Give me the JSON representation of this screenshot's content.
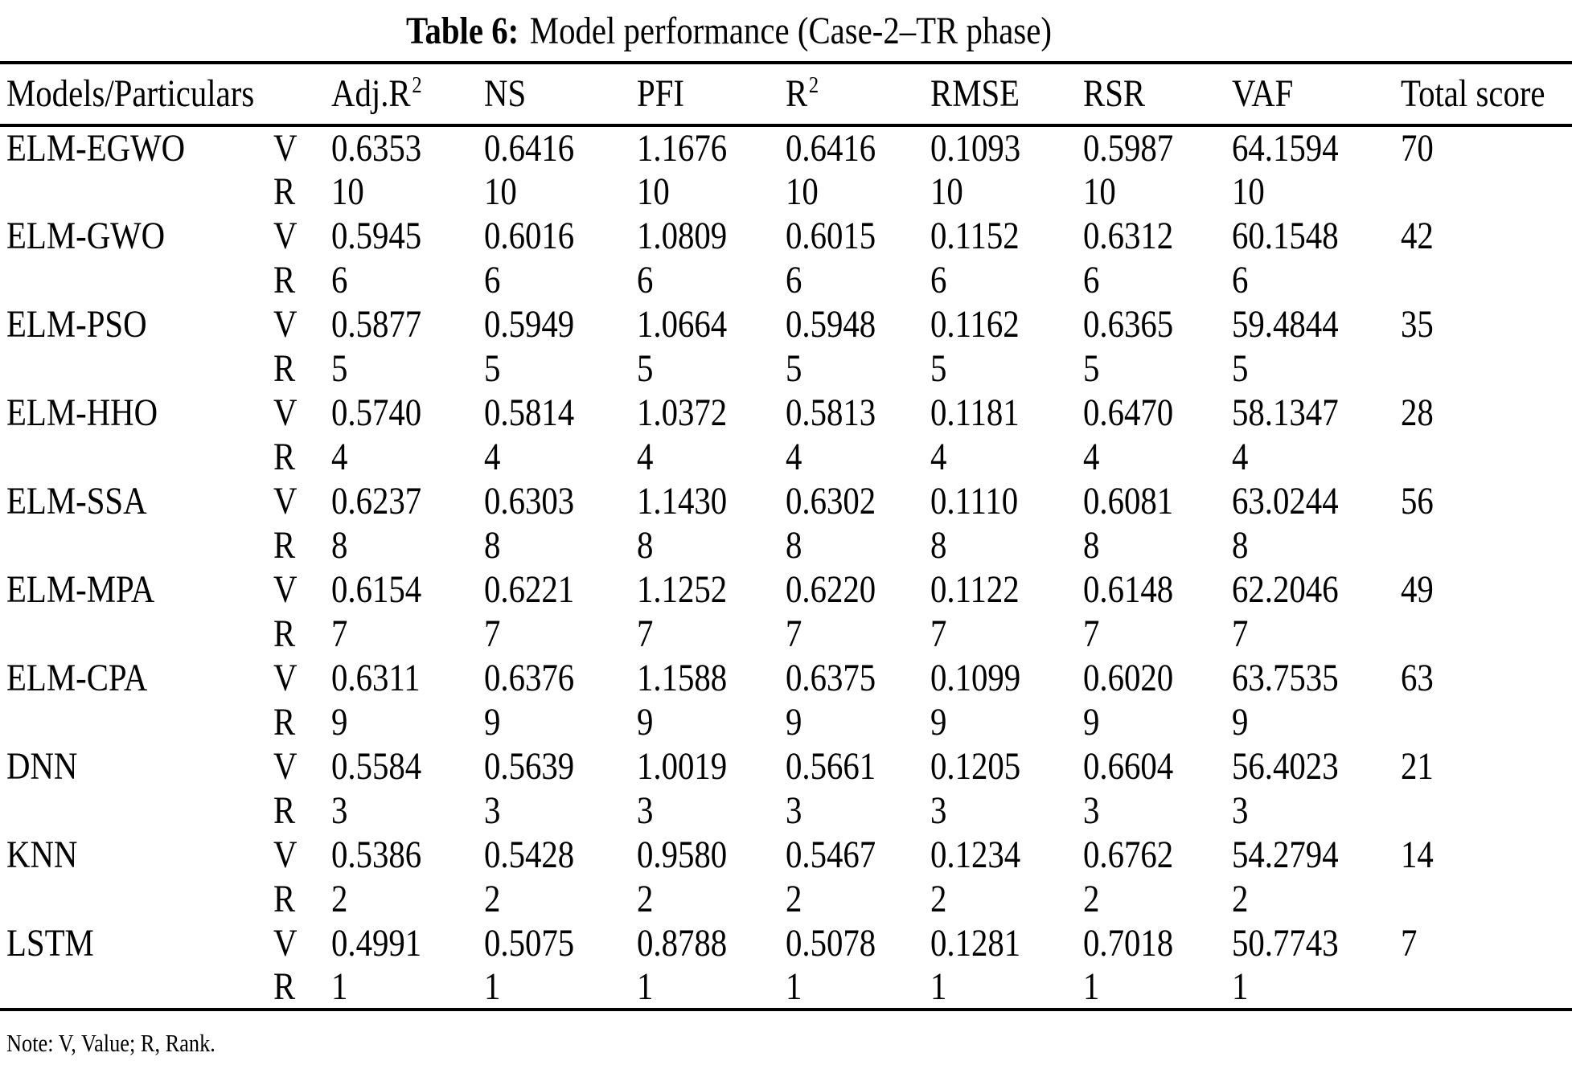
{
  "title": {
    "label": "Table 6:",
    "text": "Model performance (Case-2–TR phase)"
  },
  "table": {
    "col_headers": [
      {
        "label": "Models/Particulars",
        "sup": ""
      },
      {
        "label": "Adj.R",
        "sup": "2"
      },
      {
        "label": "NS",
        "sup": ""
      },
      {
        "label": "PFI",
        "sup": ""
      },
      {
        "label": "R",
        "sup": "2"
      },
      {
        "label": "RMSE",
        "sup": ""
      },
      {
        "label": "RSR",
        "sup": ""
      },
      {
        "label": "VAF",
        "sup": ""
      },
      {
        "label": "Total score",
        "sup": ""
      }
    ],
    "row_type_labels": {
      "value": "V",
      "rank": "R"
    },
    "rows": [
      {
        "model": "ELM-EGWO",
        "values": [
          "0.6353",
          "0.6416",
          "1.1676",
          "0.6416",
          "0.1093",
          "0.5987",
          "64.1594"
        ],
        "ranks": [
          "10",
          "10",
          "10",
          "10",
          "10",
          "10",
          "10"
        ],
        "total_score": "70"
      },
      {
        "model": "ELM-GWO",
        "values": [
          "0.5945",
          "0.6016",
          "1.0809",
          "0.6015",
          "0.1152",
          "0.6312",
          "60.1548"
        ],
        "ranks": [
          "6",
          "6",
          "6",
          "6",
          "6",
          "6",
          "6"
        ],
        "total_score": "42"
      },
      {
        "model": "ELM-PSO",
        "values": [
          "0.5877",
          "0.5949",
          "1.0664",
          "0.5948",
          "0.1162",
          "0.6365",
          "59.4844"
        ],
        "ranks": [
          "5",
          "5",
          "5",
          "5",
          "5",
          "5",
          "5"
        ],
        "total_score": "35"
      },
      {
        "model": "ELM-HHO",
        "values": [
          "0.5740",
          "0.5814",
          "1.0372",
          "0.5813",
          "0.1181",
          "0.6470",
          "58.1347"
        ],
        "ranks": [
          "4",
          "4",
          "4",
          "4",
          "4",
          "4",
          "4"
        ],
        "total_score": "28"
      },
      {
        "model": "ELM-SSA",
        "values": [
          "0.6237",
          "0.6303",
          "1.1430",
          "0.6302",
          "0.1110",
          "0.6081",
          "63.0244"
        ],
        "ranks": [
          "8",
          "8",
          "8",
          "8",
          "8",
          "8",
          "8"
        ],
        "total_score": "56"
      },
      {
        "model": "ELM-MPA",
        "values": [
          "0.6154",
          "0.6221",
          "1.1252",
          "0.6220",
          "0.1122",
          "0.6148",
          "62.2046"
        ],
        "ranks": [
          "7",
          "7",
          "7",
          "7",
          "7",
          "7",
          "7"
        ],
        "total_score": "49"
      },
      {
        "model": "ELM-CPA",
        "values": [
          "0.6311",
          "0.6376",
          "1.1588",
          "0.6375",
          "0.1099",
          "0.6020",
          "63.7535"
        ],
        "ranks": [
          "9",
          "9",
          "9",
          "9",
          "9",
          "9",
          "9"
        ],
        "total_score": "63"
      },
      {
        "model": "DNN",
        "values": [
          "0.5584",
          "0.5639",
          "1.0019",
          "0.5661",
          "0.1205",
          "0.6604",
          "56.4023"
        ],
        "ranks": [
          "3",
          "3",
          "3",
          "3",
          "3",
          "3",
          "3"
        ],
        "total_score": "21"
      },
      {
        "model": "KNN",
        "values": [
          "0.5386",
          "0.5428",
          "0.9580",
          "0.5467",
          "0.1234",
          "0.6762",
          "54.2794"
        ],
        "ranks": [
          "2",
          "2",
          "2",
          "2",
          "2",
          "2",
          "2"
        ],
        "total_score": "14"
      },
      {
        "model": "LSTM",
        "values": [
          "0.4991",
          "0.5075",
          "0.8788",
          "0.5078",
          "0.1281",
          "0.7018",
          "50.7743"
        ],
        "ranks": [
          "1",
          "1",
          "1",
          "1",
          "1",
          "1",
          "1"
        ],
        "total_score": "7"
      }
    ]
  },
  "note": "Note: V, Value; R, Rank."
}
